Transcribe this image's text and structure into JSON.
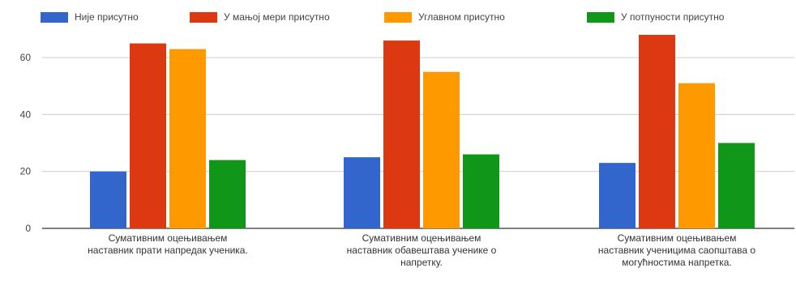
{
  "chart_data": {
    "type": "bar",
    "categories": [
      [
        "Сумативним оцењивањем",
        "наставник прати напредак ученика."
      ],
      [
        "Сумативним оцењивањем",
        "наставник обавештава ученике о",
        "напретку."
      ],
      [
        "Сумативним оцењивањем",
        "наставник ученицима саопштава о",
        "могућностима напретка."
      ]
    ],
    "series": [
      {
        "name": "Није присутно",
        "color": "#3366cc",
        "values": [
          20,
          25,
          23
        ]
      },
      {
        "name": "У мањој мери присутно",
        "color": "#dc3912",
        "values": [
          65,
          66,
          68
        ]
      },
      {
        "name": "Углавном присутно",
        "color": "#ff9900",
        "values": [
          63,
          55,
          51
        ]
      },
      {
        "name": "У потпуности присутно",
        "color": "#109618",
        "values": [
          24,
          26,
          30
        ]
      }
    ],
    "yticks": [
      "0",
      "20",
      "40",
      "60"
    ],
    "ylim": [
      0,
      70
    ],
    "grid": true,
    "legend_position": "top",
    "title": "",
    "xlabel": "",
    "ylabel": ""
  }
}
